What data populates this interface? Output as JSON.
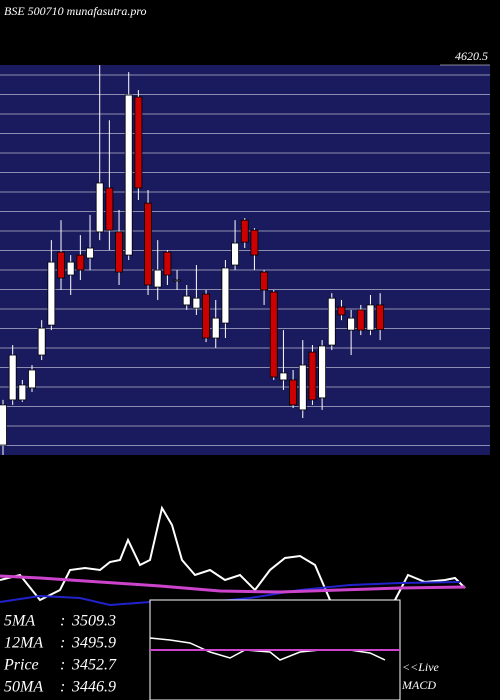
{
  "chart_data": {
    "type": "candlestick",
    "title": "BSE 500710  munafasutra.pro",
    "ylim": [
      2900,
      4620.5
    ],
    "yticks": [
      {
        "value": 4620.5,
        "label": "4620.5"
      }
    ],
    "up_color": "#ffffff",
    "down_color": "#cc0000",
    "open": [
      2944,
      3143,
      3143,
      3196,
      3341,
      3473,
      3795,
      3694,
      3782,
      3769,
      3884,
      4078,
      3884,
      3782,
      4479,
      4011,
      3641,
      3795,
      3672,
      3562,
      3548,
      3610,
      3416,
      3482,
      3738,
      3936,
      3892,
      3707,
      3619,
      3231,
      3231,
      3099,
      3354,
      3152,
      3385,
      3553,
      3451,
      3540,
      3451,
      3562
    ],
    "high": [
      3143,
      3385,
      3231,
      3297,
      3495,
      3848,
      3936,
      3782,
      3870,
      3959,
      4620,
      4377,
      3981,
      4589,
      4510,
      4069,
      3848,
      3804,
      3716,
      3650,
      3738,
      3628,
      3584,
      3760,
      3936,
      3945,
      3901,
      3716,
      3628,
      3451,
      3275,
      3407,
      3385,
      3407,
      3614,
      3584,
      3540,
      3562,
      3606,
      3614
    ],
    "low": [
      2900,
      3121,
      3134,
      3178,
      3319,
      3451,
      3628,
      3606,
      3672,
      3716,
      3848,
      3804,
      3650,
      3760,
      4025,
      3606,
      3584,
      3650,
      3628,
      3540,
      3518,
      3398,
      3372,
      3416,
      3716,
      3813,
      3716,
      3562,
      3231,
      3187,
      3107,
      3063,
      3121,
      3099,
      3363,
      3495,
      3341,
      3429,
      3429,
      3407
    ],
    "close": [
      3121,
      3341,
      3209,
      3275,
      3460,
      3751,
      3681,
      3751,
      3716,
      3813,
      4100,
      3892,
      3707,
      4488,
      4078,
      3650,
      3716,
      3694,
      3672,
      3601,
      3592,
      3416,
      3504,
      3725,
      3835,
      3839,
      3782,
      3628,
      3244,
      3262,
      3121,
      3297,
      3143,
      3381,
      3592,
      3518,
      3504,
      3451,
      3562,
      3453
    ],
    "stats": [
      {
        "label": "5MA",
        "value": "3509.3"
      },
      {
        "label": "12MA",
        "value": "3495.9"
      },
      {
        "label": "Price",
        "value": "3452.7"
      },
      {
        "label": "50MA",
        "value": "3446.9"
      }
    ],
    "live_label": "<<Live",
    "indicator_label": "MACD"
  }
}
